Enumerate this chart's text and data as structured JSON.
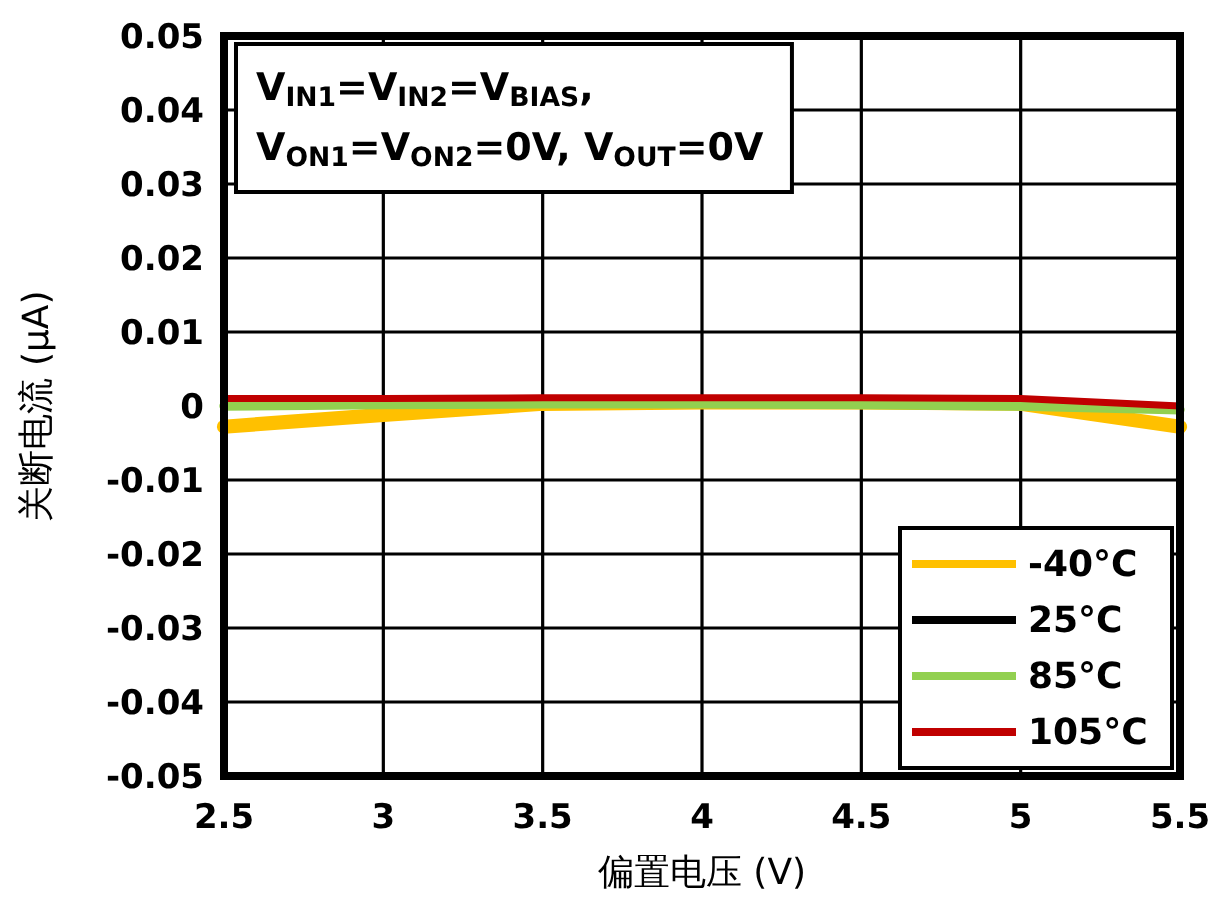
{
  "chart_data": {
    "type": "line",
    "xlabel": "偏置电压 (V)",
    "ylabel": "关断电流 (μA)",
    "annotations": [
      "V$_{IN1}$=V$_{IN2}$=V$_{BIAS}$,",
      "V$_{ON1}$=V$_{ON2}$=0V, V$_{OUT}$=0V"
    ],
    "x": [
      2.5,
      3,
      3.5,
      4,
      4.5,
      5,
      5.5
    ],
    "series": [
      {
        "name": "-40°C",
        "color": "#ffc000",
        "values": [
          -0.0028,
          -0.0012,
          0.0003,
          0.0005,
          0.0005,
          0.0003,
          -0.0028
        ]
      },
      {
        "name": "25°C",
        "color": "#000000",
        "values": [
          null,
          null,
          null,
          null,
          null,
          null,
          null
        ]
      },
      {
        "name": "85°C",
        "color": "#92d050",
        "values": [
          0.0,
          0.0002,
          0.0003,
          0.0003,
          0.0002,
          0.0,
          -0.0005
        ]
      },
      {
        "name": "105°C",
        "color": "#c00000",
        "values": [
          0.001,
          0.001,
          0.0011,
          0.0011,
          0.0011,
          0.001,
          0.0
        ]
      }
    ],
    "xlim": [
      2.5,
      5.5
    ],
    "ylim": [
      -0.05,
      0.05
    ],
    "xticks": [
      2.5,
      3,
      3.5,
      4,
      4.5,
      5,
      5.5
    ],
    "yticks": [
      -0.05,
      -0.04,
      -0.03,
      -0.02,
      -0.01,
      0,
      0.01,
      0.02,
      0.03,
      0.04,
      0.05
    ],
    "grid": true,
    "legend": "bottom right",
    "marker": "none",
    "line_style": "solid"
  }
}
